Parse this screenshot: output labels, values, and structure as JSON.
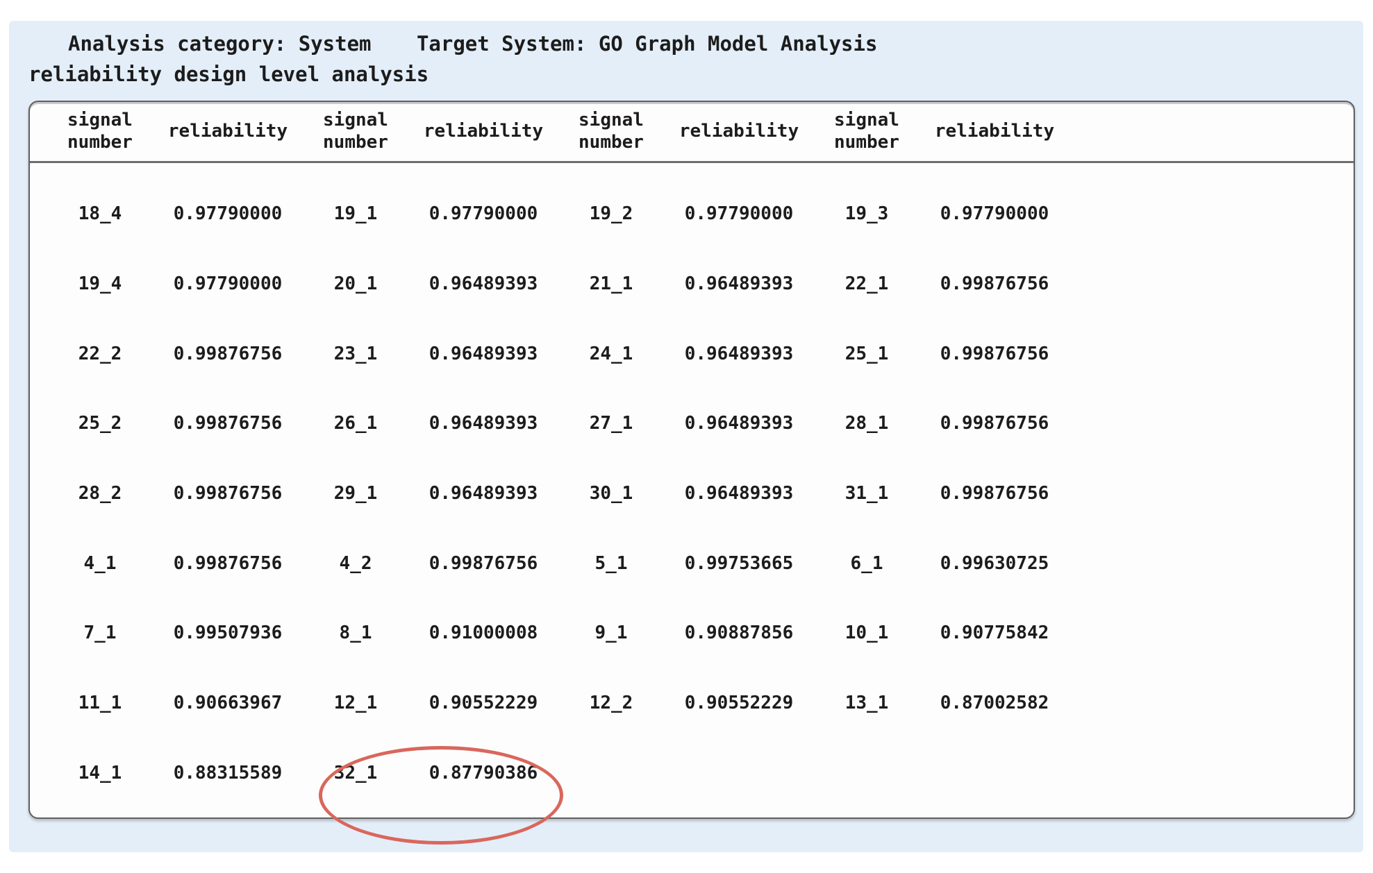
{
  "header": {
    "analysis_category_label": "Analysis category: System",
    "target_system_label": "Target System: GO Graph Model Analysis",
    "subtitle": "reliability design level analysis"
  },
  "table": {
    "column_pairs": 4,
    "signal_header": "signal\nnumber",
    "reliability_header": "reliability",
    "rows": [
      [
        {
          "signal": "18_4",
          "reliability": "0.97790000"
        },
        {
          "signal": "19_1",
          "reliability": "0.97790000"
        },
        {
          "signal": "19_2",
          "reliability": "0.97790000"
        },
        {
          "signal": "19_3",
          "reliability": "0.97790000"
        }
      ],
      [
        {
          "signal": "19_4",
          "reliability": "0.97790000"
        },
        {
          "signal": "20_1",
          "reliability": "0.96489393"
        },
        {
          "signal": "21_1",
          "reliability": "0.96489393"
        },
        {
          "signal": "22_1",
          "reliability": "0.99876756"
        }
      ],
      [
        {
          "signal": "22_2",
          "reliability": "0.99876756"
        },
        {
          "signal": "23_1",
          "reliability": "0.96489393"
        },
        {
          "signal": "24_1",
          "reliability": "0.96489393"
        },
        {
          "signal": "25_1",
          "reliability": "0.99876756"
        }
      ],
      [
        {
          "signal": "25_2",
          "reliability": "0.99876756"
        },
        {
          "signal": "26_1",
          "reliability": "0.96489393"
        },
        {
          "signal": "27_1",
          "reliability": "0.96489393"
        },
        {
          "signal": "28_1",
          "reliability": "0.99876756"
        }
      ],
      [
        {
          "signal": "28_2",
          "reliability": "0.99876756"
        },
        {
          "signal": "29_1",
          "reliability": "0.96489393"
        },
        {
          "signal": "30_1",
          "reliability": "0.96489393"
        },
        {
          "signal": "31_1",
          "reliability": "0.99876756"
        }
      ],
      [
        {
          "signal": "4_1",
          "reliability": "0.99876756"
        },
        {
          "signal": "4_2",
          "reliability": "0.99876756"
        },
        {
          "signal": "5_1",
          "reliability": "0.99753665"
        },
        {
          "signal": "6_1",
          "reliability": "0.99630725"
        }
      ],
      [
        {
          "signal": "7_1",
          "reliability": "0.99507936"
        },
        {
          "signal": "8_1",
          "reliability": "0.91000008"
        },
        {
          "signal": "9_1",
          "reliability": "0.90887856"
        },
        {
          "signal": "10_1",
          "reliability": "0.90775842"
        }
      ],
      [
        {
          "signal": "11_1",
          "reliability": "0.90663967"
        },
        {
          "signal": "12_1",
          "reliability": "0.90552229"
        },
        {
          "signal": "12_2",
          "reliability": "0.90552229"
        },
        {
          "signal": "13_1",
          "reliability": "0.87002582"
        }
      ],
      [
        {
          "signal": "14_1",
          "reliability": "0.88315589"
        },
        {
          "signal": "32_1",
          "reliability": "0.87790386"
        }
      ]
    ],
    "highlight": {
      "signal": "32_1",
      "reliability": "0.87790386",
      "row_index": 8,
      "pair_index": 1,
      "shape": "ellipse",
      "color": "#d9675c"
    }
  },
  "colors": {
    "panel_background": "#e4eef9",
    "table_background": "#fdfdfd",
    "table_border": "#5f5f5f",
    "text": "#1c1c1c",
    "highlight_ellipse": "#d9675c"
  }
}
